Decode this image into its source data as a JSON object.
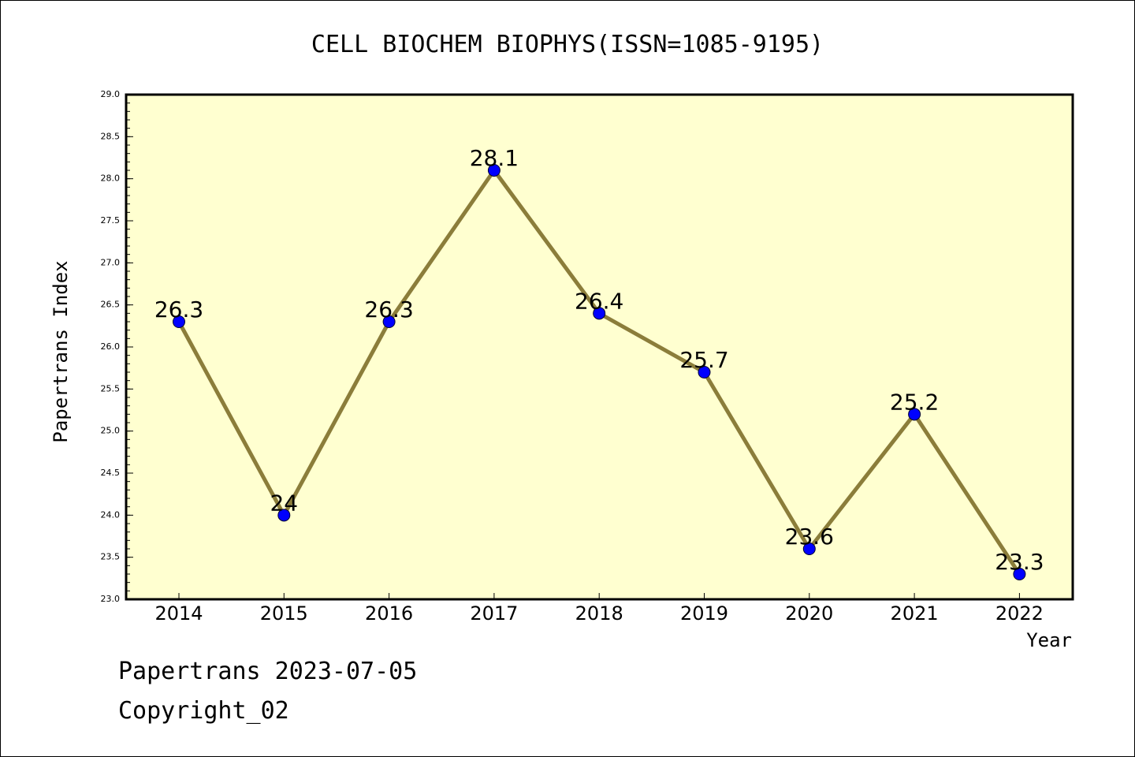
{
  "chart_data": {
    "type": "line",
    "title": "CELL BIOCHEM BIOPHYS(ISSN=1085-9195)",
    "xlabel": "Year",
    "ylabel": "Papertrans Index",
    "categories": [
      "2014",
      "2015",
      "2016",
      "2017",
      "2018",
      "2019",
      "2020",
      "2021",
      "2022"
    ],
    "series": [
      {
        "values": [
          26.3,
          24,
          26.3,
          28.1,
          26.4,
          25.7,
          23.6,
          25.2,
          23.3
        ]
      }
    ],
    "data_labels": [
      "26.3",
      "24",
      "26.3",
      "28.1",
      "26.4",
      "25.7",
      "23.6",
      "25.2",
      "23.3"
    ],
    "ylim": [
      23.0,
      29.0
    ],
    "yticks": [
      "23.0",
      "23.5",
      "24.0",
      "24.5",
      "25.0",
      "25.5",
      "26.0",
      "26.5",
      "27.0",
      "27.5",
      "28.0",
      "28.5",
      "29.0"
    ],
    "grid": false,
    "legend": "none",
    "colors": {
      "plot_background": "#ffffd0",
      "line": "#8b7d3a",
      "marker": "#0000ff"
    }
  },
  "footer": {
    "date_text": "Papertrans 2023-07-05",
    "copyright": "Copyright_02"
  }
}
